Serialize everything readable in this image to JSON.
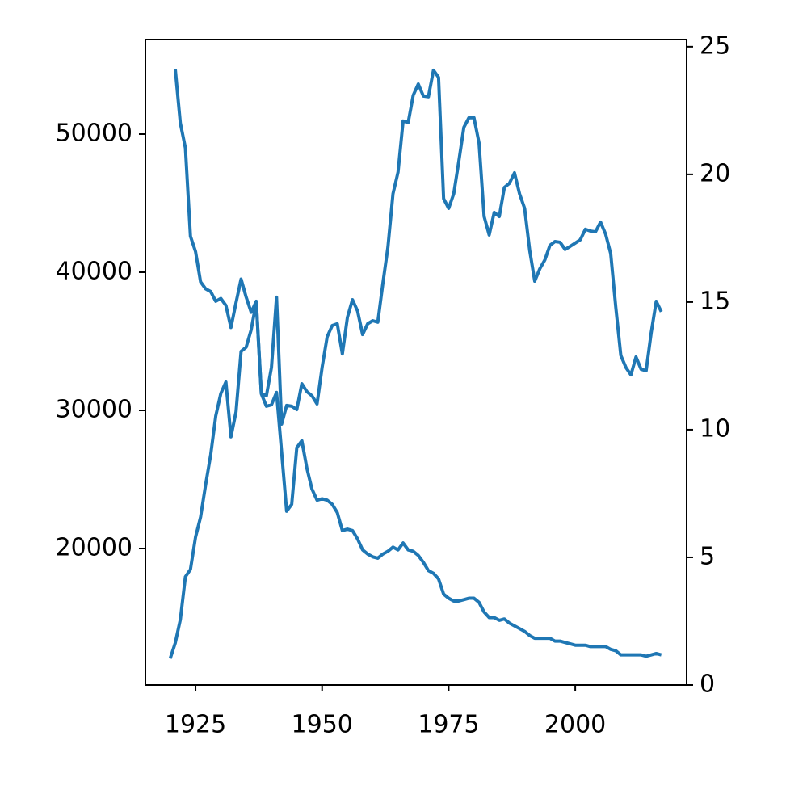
{
  "chart_data": {
    "type": "line",
    "x": [
      1920,
      1921,
      1922,
      1923,
      1924,
      1925,
      1926,
      1927,
      1928,
      1929,
      1930,
      1931,
      1932,
      1933,
      1934,
      1935,
      1936,
      1937,
      1938,
      1939,
      1940,
      1941,
      1942,
      1943,
      1944,
      1945,
      1946,
      1947,
      1948,
      1949,
      1950,
      1951,
      1952,
      1953,
      1954,
      1955,
      1956,
      1957,
      1958,
      1959,
      1960,
      1961,
      1962,
      1963,
      1964,
      1965,
      1966,
      1967,
      1968,
      1969,
      1970,
      1971,
      1972,
      1973,
      1974,
      1975,
      1976,
      1977,
      1978,
      1979,
      1980,
      1981,
      1982,
      1983,
      1984,
      1985,
      1986,
      1987,
      1988,
      1989,
      1990,
      1991,
      1992,
      1993,
      1994,
      1995,
      1996,
      1997,
      1998,
      1999,
      2000,
      2001,
      2002,
      2003,
      2004,
      2005,
      2006,
      2007,
      2008,
      2009,
      2010,
      2011,
      2012,
      2013,
      2014,
      2015,
      2016,
      2017
    ],
    "series": [
      {
        "color": "#1f77b4",
        "values": [
          null,
          54700,
          50800,
          49000,
          42600,
          41500,
          39300,
          38800,
          38600,
          37900,
          38100,
          37600,
          36000,
          37800,
          39500,
          38200,
          37100,
          37900,
          31200,
          30300,
          30400,
          31300,
          27000,
          22700,
          23200,
          27300,
          27800,
          25800,
          24300,
          23500,
          23600,
          23500,
          23200,
          22600,
          21300,
          21400,
          21300,
          20700,
          19900,
          19600,
          19400,
          19300,
          19600,
          19800,
          20100,
          19900,
          20400,
          19900,
          19800,
          19500,
          19000,
          18400,
          18200,
          17800,
          16700,
          16400,
          16200,
          16200,
          16300,
          16400,
          16400,
          16100,
          15400,
          15000,
          15000,
          14800,
          14900,
          14600,
          14400,
          14200,
          14000,
          13700,
          13500,
          13500,
          13500,
          13500,
          13300,
          13300,
          13200,
          13100,
          13000,
          13000,
          13000,
          12900,
          12900,
          12900,
          12900,
          12700,
          12600,
          12300,
          12300,
          12300,
          12300,
          12300,
          12200,
          12300,
          12400,
          12300
        ]
      },
      {
        "color": "#1f77b4",
        "axis": "y2",
        "values": [
          1.04,
          1.65,
          2.56,
          4.24,
          4.53,
          5.79,
          6.58,
          7.85,
          9.02,
          10.54,
          11.42,
          11.87,
          9.72,
          10.7,
          13.07,
          13.23,
          13.92,
          15.0,
          11.42,
          11.33,
          12.44,
          15.19,
          10.22,
          10.95,
          10.92,
          10.79,
          11.8,
          11.49,
          11.33,
          11.01,
          12.44,
          13.64,
          14.08,
          14.15,
          12.97,
          14.4,
          15.09,
          14.65,
          13.73,
          14.15,
          14.27,
          14.21,
          15.73,
          17.15,
          19.24,
          20.09,
          22.09,
          22.03,
          23.1,
          23.54,
          23.07,
          23.04,
          24.08,
          23.8,
          19.05,
          18.67,
          19.24,
          20.51,
          21.84,
          22.22,
          22.22,
          21.23,
          18.35,
          17.63,
          18.51,
          18.35,
          19.49,
          19.65,
          20.06,
          19.24,
          18.67,
          17.03,
          15.82,
          16.3,
          16.65,
          17.22,
          17.37,
          17.34,
          17.06,
          17.18,
          17.31,
          17.44,
          17.85,
          17.78,
          17.75,
          18.13,
          17.66,
          16.9,
          14.81,
          12.91,
          12.44,
          12.15,
          12.85,
          12.37,
          12.31,
          13.8,
          15.03,
          14.62
        ]
      }
    ],
    "xlim": [
      1915.1,
      2022
    ],
    "xticks": [
      1925,
      1950,
      1975,
      2000
    ],
    "ylim": [
      10117,
      56842
    ],
    "yticks": [
      20000,
      30000,
      40000,
      50000
    ],
    "y2lim": [
      0,
      25.28
    ],
    "y2ticks": [
      0,
      5,
      10,
      15,
      20,
      25
    ],
    "grid": false
  }
}
